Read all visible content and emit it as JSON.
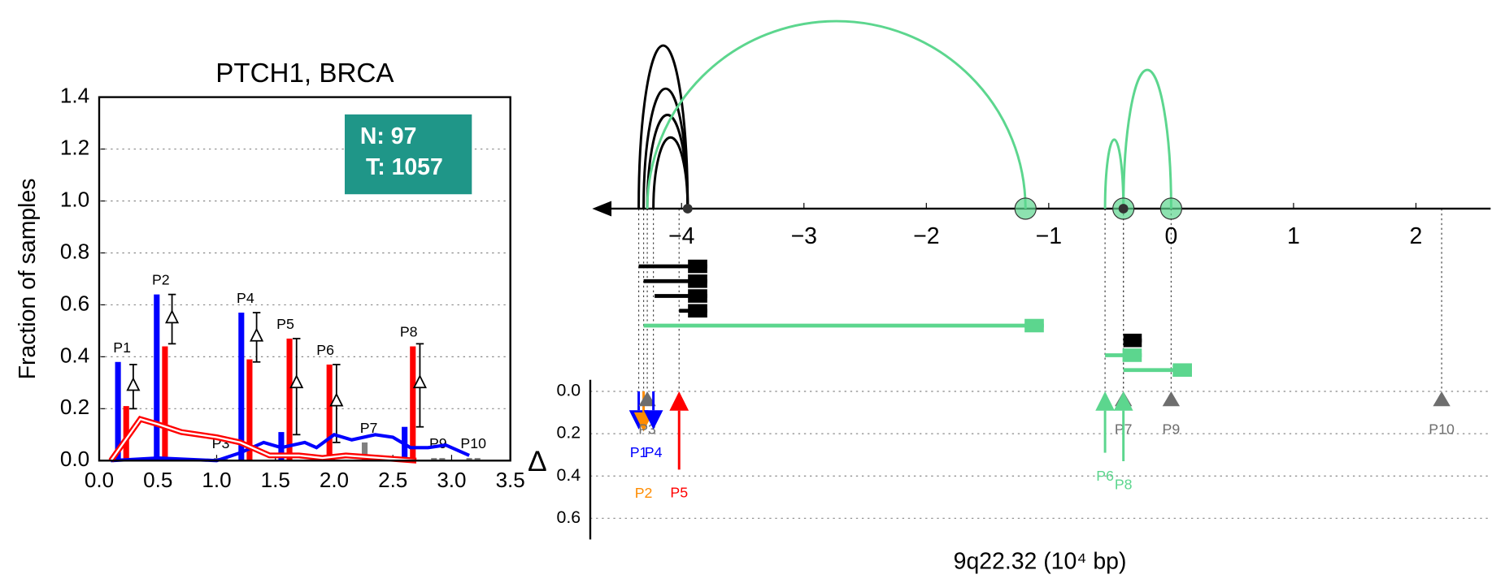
{
  "chart_data": [
    {
      "type": "bar",
      "title": "PTCH1, BRCA",
      "ylabel": "Fraction of samples",
      "xlim": [
        0,
        3.5
      ],
      "xticks": [
        {
          "value": 0,
          "label": "0.0"
        },
        {
          "value": 0.5,
          "label": "0.5"
        },
        {
          "value": 1,
          "label": "1.0"
        },
        {
          "value": 1.5,
          "label": "1.5"
        },
        {
          "value": 2,
          "label": "2.0"
        },
        {
          "value": 2.5,
          "label": "2.5"
        },
        {
          "value": 3,
          "label": "3.0"
        },
        {
          "value": 3.5,
          "label": "3.5"
        }
      ],
      "ylim": [
        0,
        1.4
      ],
      "yticks": [
        {
          "value": 0,
          "label": "0.0"
        },
        0.2,
        0.4,
        0.6,
        0.8,
        {
          "value": 1,
          "label": "1.0"
        },
        1.2,
        1.4
      ],
      "grid": true,
      "annotation": [
        "N: 97",
        "T: 1057"
      ],
      "annotation_color": "#1f9688",
      "normal_color": "#0000ff",
      "tumor_color": "#ff0000",
      "ns_color": "#808080",
      "peaks": [
        {
          "label": "P1",
          "x": 0.16,
          "normal": 0.38,
          "tumor": 0.21,
          "significant": true,
          "delta": 0.29,
          "delta_err": [
            0.2,
            0.37
          ]
        },
        {
          "label": "P2",
          "x": 0.49,
          "normal": 0.64,
          "tumor": 0.44,
          "significant": true,
          "delta": 0.55,
          "delta_err": [
            0.45,
            0.64
          ]
        },
        {
          "label": "P3",
          "x": 1.0,
          "normal": 0.01,
          "tumor": 0.01,
          "significant": false
        },
        {
          "label": "P4",
          "x": 1.21,
          "normal": 0.57,
          "tumor": 0.39,
          "significant": true,
          "delta": 0.48,
          "delta_err": [
            0.38,
            0.57
          ]
        },
        {
          "label": "P5",
          "x": 1.55,
          "normal": 0.11,
          "tumor": 0.47,
          "significant": true,
          "delta": 0.3,
          "delta_err": [
            0.1,
            0.47
          ]
        },
        {
          "label": "P6",
          "x": 1.89,
          "normal": 0.02,
          "tumor": 0.37,
          "significant": true,
          "delta": 0.23,
          "delta_err": [
            0.07,
            0.37
          ]
        },
        {
          "label": "P7",
          "x": 2.26,
          "normal": 0.07,
          "tumor": 0.02,
          "significant": false
        },
        {
          "label": "P8",
          "x": 2.6,
          "normal": 0.13,
          "tumor": 0.44,
          "significant": true,
          "delta": 0.3,
          "delta_err": [
            0.13,
            0.45
          ]
        },
        {
          "label": "P9",
          "x": 2.85,
          "normal": 0.01,
          "tumor": 0.01,
          "significant": false
        },
        {
          "label": "P10",
          "x": 3.15,
          "normal": 0.01,
          "tumor": 0.01,
          "significant": false
        }
      ],
      "lines": [
        {
          "color": "#0000ff",
          "x": [
            0.1,
            0.5,
            1.0,
            1.2,
            1.4,
            1.55,
            1.75,
            1.85,
            2.0,
            2.15,
            2.35,
            2.5,
            2.65,
            2.8,
            2.95,
            3.15
          ],
          "values": [
            0,
            0.01,
            0,
            0.03,
            0.07,
            0.05,
            0.07,
            0.05,
            0.1,
            0.08,
            0.1,
            0.09,
            0.05,
            0.05,
            0.06,
            0.02
          ]
        },
        {
          "color": "#ff0000",
          "x": [
            0.1,
            0.35,
            0.5,
            0.7,
            1.0,
            1.2,
            1.45,
            1.7,
            1.9,
            2.1,
            2.4,
            2.7
          ],
          "values": [
            0,
            0.16,
            0.14,
            0.11,
            0.09,
            0.07,
            0.02,
            0.02,
            0.01,
            0.02,
            0.01,
            0
          ]
        }
      ]
    },
    {
      "type": "genome",
      "xlabel": "9q22.32 (10⁴ bp)",
      "xlim": [
        -4.73,
        2.61
      ],
      "xticks": [
        {
          "value": -4,
          "label": "−4"
        },
        {
          "value": -3,
          "label": "−3"
        },
        {
          "value": -2,
          "label": "−2"
        },
        {
          "value": -1,
          "label": "−1"
        },
        0,
        1,
        2
      ],
      "ylabel": "Δ",
      "ylim": [
        0,
        0.7
      ],
      "yticks": [
        {
          "value": 0,
          "label": "0.0"
        },
        0.2,
        0.4,
        0.6
      ],
      "arcs": [
        {
          "start": -4.35,
          "end": -3.95,
          "height": 0.87,
          "color": "#000000"
        },
        {
          "start": -4.31,
          "end": -3.95,
          "height": 0.64,
          "color": "#000000"
        },
        {
          "start": -4.28,
          "end": -3.95,
          "height": 0.5,
          "color": "#000000"
        },
        {
          "start": -4.23,
          "end": -3.95,
          "height": 0.38,
          "color": "#000000"
        },
        {
          "start": -4.28,
          "end": -1.19,
          "height": 1.0,
          "color": "#5cd68e"
        },
        {
          "start": -0.54,
          "end": -0.39,
          "height": 0.37,
          "color": "#5cd68e"
        },
        {
          "start": -0.39,
          "end": 0,
          "height": 0.74,
          "color": "#5cd68e"
        }
      ],
      "circles": [
        -1.19,
        -0.39,
        0
      ],
      "circle_color": "#5cd68e",
      "dots": [
        -3.95,
        -0.39
      ],
      "genes": [
        {
          "start": -4.35,
          "end": -3.79,
          "color": "#000000"
        },
        {
          "start": -4.31,
          "end": -3.79,
          "color": "#000000"
        },
        {
          "start": -4.22,
          "end": -3.79,
          "color": "#000000"
        },
        {
          "start": -4.02,
          "end": -3.79,
          "color": "#000000"
        },
        {
          "start": -4.31,
          "end": -1.04,
          "color": "#5cd68e"
        },
        {
          "start": -0.39,
          "end": -0.24,
          "color": "#000000"
        },
        {
          "start": -0.54,
          "end": -0.24,
          "color": "#5cd68e"
        },
        {
          "start": -0.39,
          "end": 0.17,
          "color": "#5cd68e"
        }
      ],
      "peaks": [
        {
          "label": "P1",
          "x": -4.35,
          "delta": 0.18,
          "color": "#0000ff",
          "direction": "down"
        },
        {
          "label": "P2",
          "x": -4.31,
          "delta": 0.19,
          "color": "#ff8c00",
          "direction": "down"
        },
        {
          "label": "P3",
          "x": -4.28,
          "delta": 0.07,
          "color": "#6e6e6e",
          "direction": "none"
        },
        {
          "label": "P4",
          "x": -4.23,
          "delta": 0.18,
          "color": "#0000ff",
          "direction": "down"
        },
        {
          "label": "P5",
          "x": -4.02,
          "delta": 0.37,
          "color": "#ff0000",
          "direction": "up"
        },
        {
          "label": "P6",
          "x": -0.54,
          "delta": 0.29,
          "color": "#5cd68e",
          "direction": "up"
        },
        {
          "label": "P7",
          "x": -0.39,
          "delta": 0.07,
          "color": "#6e6e6e",
          "direction": "none"
        },
        {
          "label": "P8",
          "x": -0.39,
          "delta": 0.33,
          "color": "#5cd68e",
          "direction": "up"
        },
        {
          "label": "P9",
          "x": 0,
          "delta": 0.07,
          "color": "#6e6e6e",
          "direction": "none"
        },
        {
          "label": "P10",
          "x": 2.21,
          "delta": 0.07,
          "color": "#6e6e6e",
          "direction": "none"
        }
      ]
    }
  ]
}
